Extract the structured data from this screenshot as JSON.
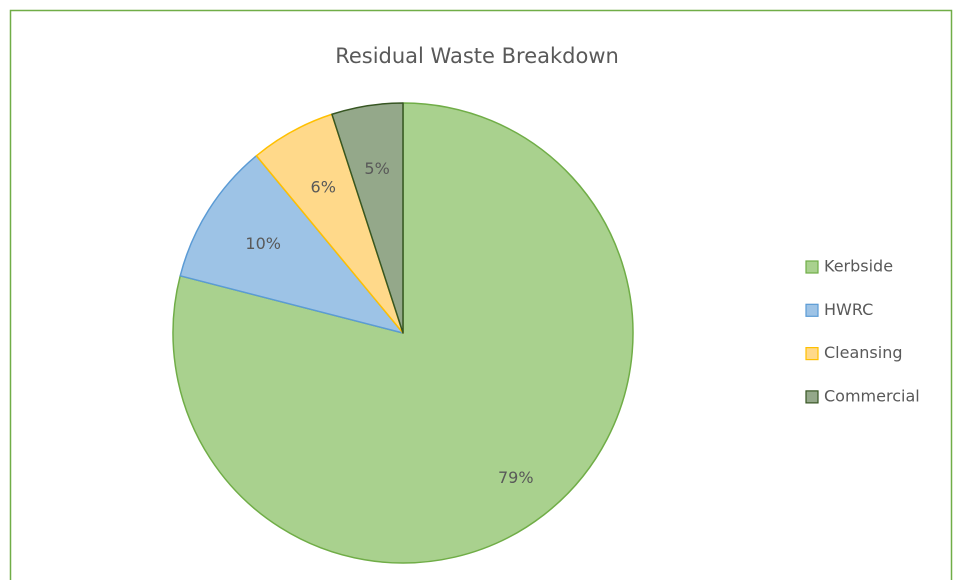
{
  "chart_data": {
    "type": "pie",
    "title": "Residual Waste Breakdown",
    "categories": [
      "Kerbside",
      "HWRC",
      "Cleansing",
      "Commercial"
    ],
    "values": [
      79,
      10,
      6,
      5
    ],
    "value_labels": [
      "79%",
      "10%",
      "6%",
      "5%"
    ],
    "colors": [
      "#a9d18e",
      "#9dc3e6",
      "#ffd98a",
      "#94a88a"
    ],
    "edge_colors": [
      "#70ad47",
      "#5b9bd5",
      "#ffc000",
      "#375623"
    ],
    "legend": "right"
  }
}
